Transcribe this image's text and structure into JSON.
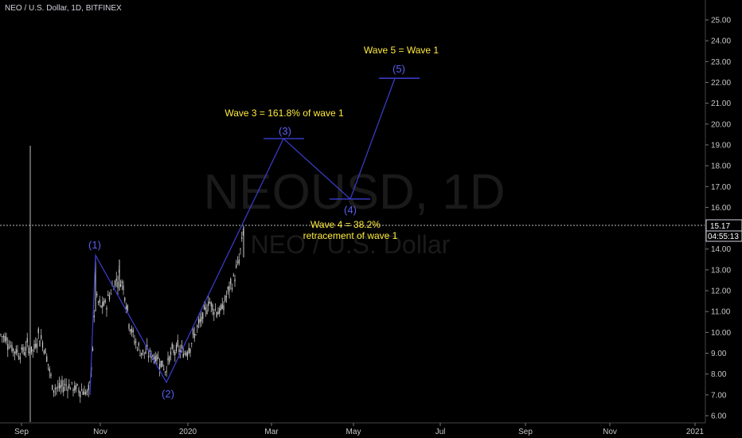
{
  "header": {
    "title": "NEO / U.S. Dollar, 1D, BITFINEX"
  },
  "watermark": {
    "symbol": "NEOUSD, 1D",
    "subtitle": "NEO / U.S. Dollar"
  },
  "chart_data": {
    "type": "candlestick",
    "y_ticks": [
      "25.00",
      "24.00",
      "23.00",
      "22.00",
      "21.00",
      "20.00",
      "19.00",
      "18.00",
      "17.00",
      "16.00",
      "15.00",
      "14.00",
      "13.00",
      "12.00",
      "11.00",
      "10.00",
      "9.00",
      "8.00",
      "7.00",
      "6.00"
    ],
    "ylim": [
      6,
      25
    ],
    "x_ticks": [
      "Sep",
      "Nov",
      "2020",
      "Mar",
      "May",
      "Jul",
      "Sep",
      "Nov",
      "2021"
    ],
    "last_price": "15.17",
    "countdown": "04:55:13",
    "waves": [
      {
        "label": "(1)",
        "value": 13.7
      },
      {
        "label": "(2)",
        "value": 7.6
      },
      {
        "label": "(3)",
        "value": 19.3
      },
      {
        "label": "(4)",
        "value": 16.4
      },
      {
        "label": "(5)",
        "value": 22.2
      }
    ],
    "annotations": [
      "Wave 5 = Wave 1",
      "Wave 3 = 161.8% of wave 1",
      "Wave 4 = 38.2%",
      "retracement of wave 1"
    ],
    "colors": {
      "wave": "#3b3fd0",
      "annotation": "#ffeb3b",
      "candles": "#c8c8c8"
    }
  }
}
